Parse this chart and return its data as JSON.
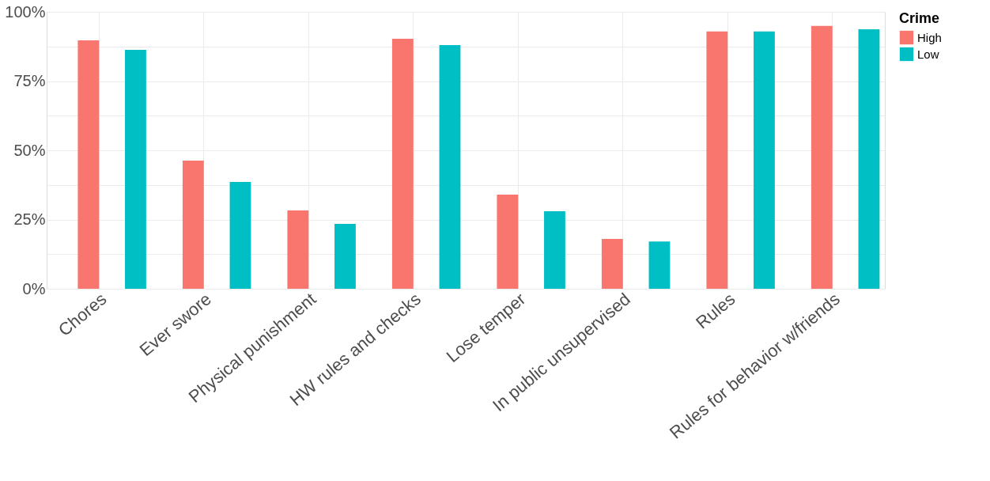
{
  "chart_data": {
    "type": "bar",
    "categories": [
      "Chores",
      "Ever swore",
      "Physical punishment",
      "HW rules and checks",
      "Lose temper",
      "In public unsupervised",
      "Rules",
      "Rules for behavior w/friends"
    ],
    "series": [
      {
        "name": "High",
        "color": "#f8766d",
        "values": [
          89.7,
          46.3,
          28.3,
          90.3,
          34,
          18,
          92.9,
          94.9
        ]
      },
      {
        "name": "Low",
        "color": "#00bfc4",
        "values": [
          86.3,
          38.6,
          23.4,
          88,
          28,
          17.1,
          92.9,
          93.7
        ]
      }
    ],
    "legend_title": "Crime",
    "legend": "right",
    "grid": true,
    "ylim": [
      0,
      100
    ],
    "yticks": [
      {
        "value": 0,
        "label": "0%"
      },
      {
        "value": 12.5,
        "label": null
      },
      {
        "value": 25,
        "label": "25%"
      },
      {
        "value": 37.5,
        "label": null
      },
      {
        "value": 50,
        "label": "50%"
      },
      {
        "value": 62.5,
        "label": null
      },
      {
        "value": 75,
        "label": "75%"
      },
      {
        "value": 87.5,
        "label": null
      },
      {
        "value": 100,
        "label": "100%"
      }
    ]
  }
}
